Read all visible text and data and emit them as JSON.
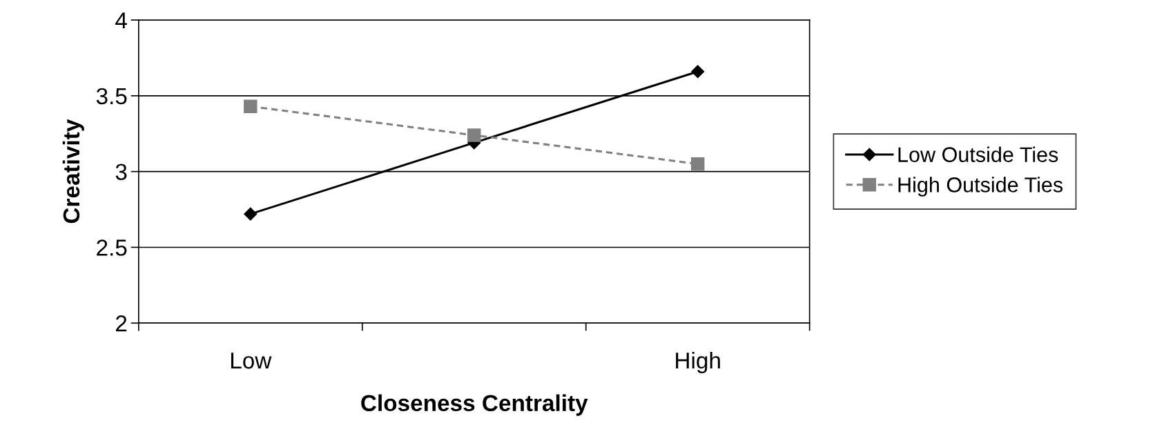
{
  "chart_data": {
    "type": "line",
    "xlabel": "Closeness Centrality",
    "ylabel": "Creativity",
    "categories": [
      "Low",
      null,
      "High"
    ],
    "series": [
      {
        "name": "Low Outside Ties",
        "color": "#000000",
        "values": [
          2.72,
          3.19,
          3.66
        ],
        "marker": "diamond",
        "line_style": "solid"
      },
      {
        "name": "High Outside Ties",
        "color": "#808080",
        "values": [
          3.43,
          3.24,
          3.05
        ],
        "marker": "square",
        "line_style": "dashed"
      }
    ],
    "ylim": [
      2,
      4
    ],
    "yticks": [
      2,
      2.5,
      3,
      3.5,
      4
    ],
    "grid": "y",
    "legend": "right"
  }
}
